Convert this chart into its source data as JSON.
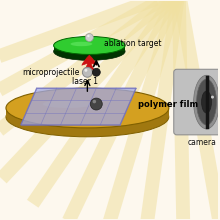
{
  "bg_color": "#fdf8ee",
  "ray_color": "#f0e0a0",
  "polymer_film_label": "polymer film",
  "microprojectile_label": "microprojectile",
  "ablation_label": "ablation target",
  "laser_label": "laser 1",
  "camera_label": "camera",
  "gold_top": "#d4a020",
  "gold_side": "#a07810",
  "gold_edge": "#806000",
  "film_blue": "#a0a8e8",
  "film_cell": "#b8b8f0",
  "film_edge": "#7070c0",
  "green_top": "#30cc30",
  "green_hi": "#70ee70",
  "green_dark": "#004400",
  "red_arrow": "#cc1111",
  "ball_gray": "#888888",
  "ball_light": "#bbbbbb",
  "ball_dark": "#444444",
  "ball_darkest": "#222222",
  "cam_outer": "#c0c0c0",
  "cam_mid": "#909090",
  "cam_inner": "#505050",
  "cam_dark": "#282828",
  "cam_body": "#d8d8d8"
}
